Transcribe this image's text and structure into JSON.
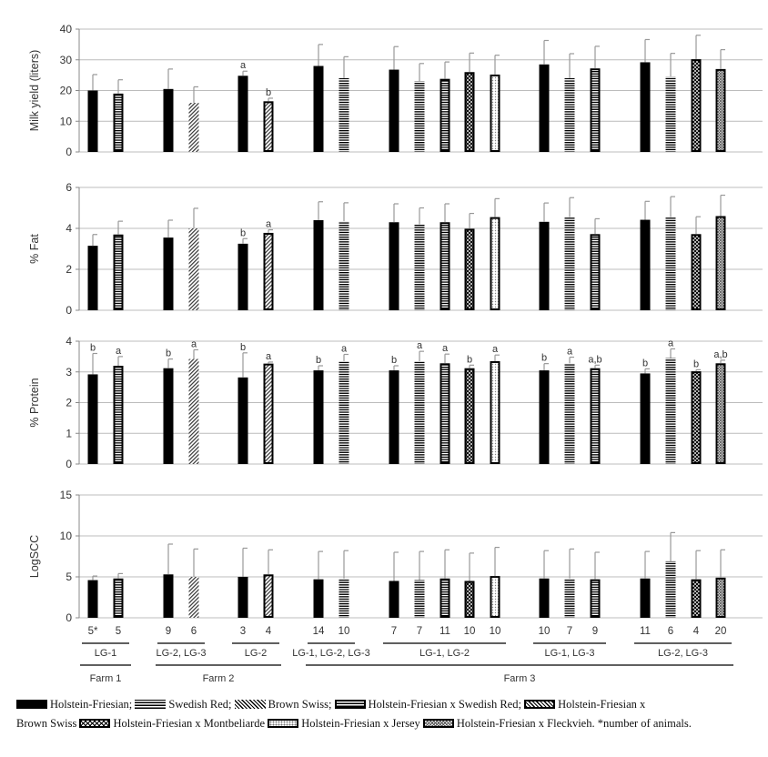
{
  "chart_data": {
    "type": "bar",
    "groups": [
      {
        "count": "5*",
        "breed": "HF"
      },
      {
        "count": "5",
        "breed": "HFxSR"
      },
      {
        "count": "9",
        "breed": "HF"
      },
      {
        "count": "6",
        "breed": "BS"
      },
      {
        "count": "3",
        "breed": "HF"
      },
      {
        "count": "4",
        "breed": "HFxBS"
      },
      {
        "count": "14",
        "breed": "HF"
      },
      {
        "count": "10",
        "breed": "SR"
      },
      {
        "count": "7",
        "breed": "HF"
      },
      {
        "count": "7",
        "breed": "SR"
      },
      {
        "count": "11",
        "breed": "HFxSR"
      },
      {
        "count": "10",
        "breed": "HFxM"
      },
      {
        "count": "10",
        "breed": "HFxJ"
      },
      {
        "count": "10",
        "breed": "HF"
      },
      {
        "count": "7",
        "breed": "SR"
      },
      {
        "count": "9",
        "breed": "HFxSR"
      },
      {
        "count": "11",
        "breed": "HF"
      },
      {
        "count": "6",
        "breed": "SR"
      },
      {
        "count": "4",
        "breed": "HFxM"
      },
      {
        "count": "20",
        "breed": "HFxFV"
      }
    ],
    "panels": [
      {
        "ylabel": "Milk yield (liters)",
        "ylim": [
          0,
          40
        ],
        "yticks": [
          "0",
          "10",
          "20",
          "30",
          "40"
        ],
        "values": [
          20,
          19,
          20.5,
          16,
          24.8,
          16.5,
          28,
          24,
          26.8,
          23,
          23.8,
          26,
          25.2,
          28.5,
          24,
          27.2,
          29.2,
          24.5,
          30.2,
          27
        ],
        "errors": [
          5.2,
          4.5,
          6.5,
          5.2,
          1.5,
          1.0,
          7.0,
          7.0,
          7.5,
          5.8,
          5.5,
          6.2,
          6.3,
          7.8,
          8.0,
          7.2,
          7.4,
          7.6,
          7.8,
          6.3
        ],
        "labels": [
          "",
          "",
          "",
          "",
          "a",
          "b",
          "",
          "",
          "",
          "",
          "",
          "",
          "",
          "",
          "",
          "",
          "",
          "",
          "",
          ""
        ]
      },
      {
        "ylabel": "% Fat",
        "ylim": [
          0,
          6
        ],
        "yticks": [
          "0",
          "2",
          "4",
          "6"
        ],
        "values": [
          3.15,
          3.7,
          3.55,
          4.0,
          3.25,
          3.78,
          4.4,
          4.35,
          4.3,
          4.2,
          4.3,
          3.98,
          4.55,
          4.32,
          4.55,
          3.72,
          4.42,
          4.55,
          3.72,
          4.6
        ],
        "errors": [
          0.55,
          0.65,
          0.85,
          0.98,
          0.25,
          0.15,
          0.9,
          0.9,
          0.9,
          0.8,
          0.9,
          0.75,
          0.9,
          0.92,
          0.95,
          0.75,
          0.9,
          1.0,
          0.85,
          1.02
        ],
        "labels": [
          "",
          "",
          "",
          "",
          "b",
          "a",
          "",
          "",
          "",
          "",
          "",
          "",
          "",
          "",
          "",
          "",
          "",
          "",
          "",
          ""
        ]
      },
      {
        "ylabel": "% Protein",
        "ylim": [
          0,
          4
        ],
        "yticks": [
          "0",
          "1",
          "2",
          "3",
          "4"
        ],
        "values": [
          2.92,
          3.2,
          3.12,
          3.42,
          2.82,
          3.27,
          3.05,
          3.35,
          3.05,
          3.35,
          3.28,
          3.12,
          3.35,
          3.05,
          3.28,
          3.12,
          2.95,
          3.45,
          3.02,
          3.28
        ],
        "errors": [
          0.68,
          0.3,
          0.3,
          0.3,
          0.8,
          0.05,
          0.15,
          0.22,
          0.15,
          0.32,
          0.3,
          0.1,
          0.2,
          0.22,
          0.2,
          0.1,
          0.15,
          0.3,
          0.05,
          0.1
        ],
        "labels": [
          "b",
          "a",
          "b",
          "a",
          "b",
          "a",
          "b",
          "a",
          "b",
          "a",
          "a",
          "b",
          "a",
          "b",
          "a",
          "a,b",
          "b",
          "a",
          "b",
          "a,b"
        ]
      },
      {
        "ylabel": "LogSCC",
        "ylim": [
          0,
          15
        ],
        "yticks": [
          "0",
          "5",
          "10",
          "15"
        ],
        "values": [
          4.6,
          4.8,
          5.3,
          5.0,
          5.0,
          5.3,
          4.7,
          4.8,
          4.5,
          4.6,
          4.8,
          4.5,
          5.1,
          4.8,
          4.8,
          4.7,
          4.8,
          6.9,
          4.7,
          4.9
        ],
        "errors": [
          0.5,
          0.6,
          3.7,
          3.4,
          3.5,
          3.0,
          3.4,
          3.4,
          3.5,
          3.5,
          3.5,
          3.4,
          3.5,
          3.4,
          3.6,
          3.3,
          3.3,
          3.5,
          3.5,
          3.4
        ],
        "labels": [
          "",
          "",
          "",
          "",
          "",
          "",
          "",
          "",
          "",
          "",
          "",
          "",
          "",
          "",
          "",
          "",
          "",
          "",
          "",
          ""
        ]
      }
    ],
    "lg_groups": [
      {
        "label": "LG-1",
        "from": 0,
        "to": 1
      },
      {
        "label": "LG-2, LG-3",
        "from": 2,
        "to": 3
      },
      {
        "label": "LG-2",
        "from": 4,
        "to": 5
      },
      {
        "label": "LG-1, LG-2, LG-3",
        "from": 6,
        "to": 7
      },
      {
        "label": "LG-1, LG-2",
        "from": 8,
        "to": 12
      },
      {
        "label": "LG-1, LG-3",
        "from": 13,
        "to": 15
      },
      {
        "label": "LG-2, LG-3",
        "from": 16,
        "to": 19
      }
    ],
    "farms": [
      {
        "label": "Farm 1",
        "from": 0,
        "to": 1
      },
      {
        "label": "Farm 2",
        "from": 2,
        "to": 5
      },
      {
        "label": "Farm 3",
        "from": 6,
        "to": 19
      }
    ]
  },
  "legend": {
    "hf": "Holstein-Friesian;",
    "sr": "Swedish Red;",
    "bs": "Brown Swiss;",
    "hfxsr": "Holstein-Friesian x Swedish Red;",
    "hfxbs_1": "Holstein-Friesian x",
    "hfxbs_2": "Brown Swiss",
    "hfxm": "Holstein-Friesian x Montbeliarde",
    "hfxj": "Holstein-Friesian x Jersey",
    "hfxfv": "Holstein-Friesian x Fleckvieh.",
    "footnote": "*number of animals."
  }
}
